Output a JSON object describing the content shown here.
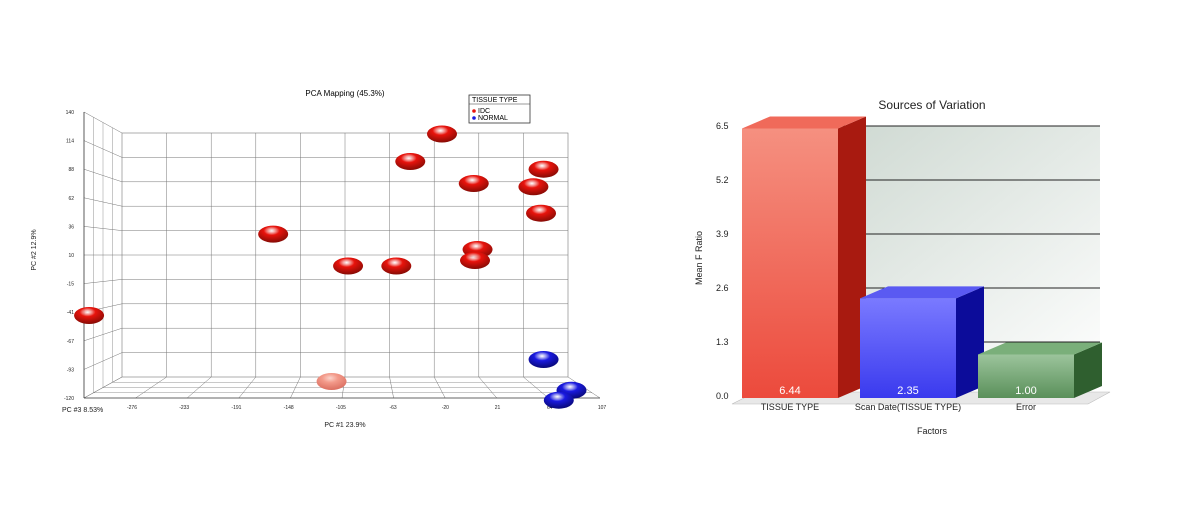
{
  "chart_data": [
    {
      "type": "scatter",
      "title": "PCA Mapping (45.3%)",
      "xlabel": "PC #1 23.9%",
      "ylabel": "PC #2 12.9%",
      "zlabel": "PC #3 8.53%",
      "xticks": [
        "-276",
        "-233",
        "-191",
        "-148",
        "-105",
        "-63",
        "-20",
        "21",
        "64",
        "107"
      ],
      "yticks": [
        "140",
        "114",
        "88",
        "62",
        "36",
        "10",
        "-15",
        "-41",
        "-67",
        "-93",
        "-120"
      ],
      "xlim": [
        -290,
        107
      ],
      "ylim": [
        -120,
        140
      ],
      "legend": {
        "title": "TISSUE TYPE",
        "placement": "top-right",
        "entries": [
          {
            "label": "IDC",
            "color": "#e8130c"
          },
          {
            "label": "NORMAL",
            "color": "#1a1ae0"
          }
        ]
      },
      "series": [
        {
          "name": "IDC",
          "color": "#e8130c",
          "points": [
            {
              "x": -8,
              "y": 120
            },
            {
              "x": -33,
              "y": 95
            },
            {
              "x": 17,
              "y": 75
            },
            {
              "x": 72,
              "y": 88
            },
            {
              "x": 64,
              "y": 72
            },
            {
              "x": 70,
              "y": 48
            },
            {
              "x": 20,
              "y": 15
            },
            {
              "x": 18,
              "y": 5
            },
            {
              "x": -141,
              "y": 29
            },
            {
              "x": -82,
              "y": 0
            },
            {
              "x": -44,
              "y": 0
            },
            {
              "x": -286,
              "y": -45
            },
            {
              "x": -95,
              "y": -105,
              "faded": true
            }
          ]
        },
        {
          "name": "NORMAL",
          "color": "#1a1ae0",
          "points": [
            {
              "x": 72,
              "y": -85
            },
            {
              "x": 94,
              "y": -113
            },
            {
              "x": 84,
              "y": -122
            }
          ]
        }
      ]
    },
    {
      "type": "bar",
      "title": "Sources of Variation",
      "xlabel": "Factors",
      "ylabel": "Mean F Ratio",
      "ylim": [
        0,
        6.5
      ],
      "yticks": [
        "0.0",
        "1.3",
        "2.6",
        "3.9",
        "5.2",
        "6.5"
      ],
      "categories": [
        "TISSUE TYPE",
        "Scan Date(TISSUE TYPE)",
        "Error"
      ],
      "values": [
        6.44,
        2.35,
        1.0
      ],
      "value_labels": [
        "6.44",
        "2.35",
        "1.00"
      ],
      "colors": [
        "#ee5a4e",
        "#4b4bf0",
        "#6aa06a"
      ]
    }
  ]
}
